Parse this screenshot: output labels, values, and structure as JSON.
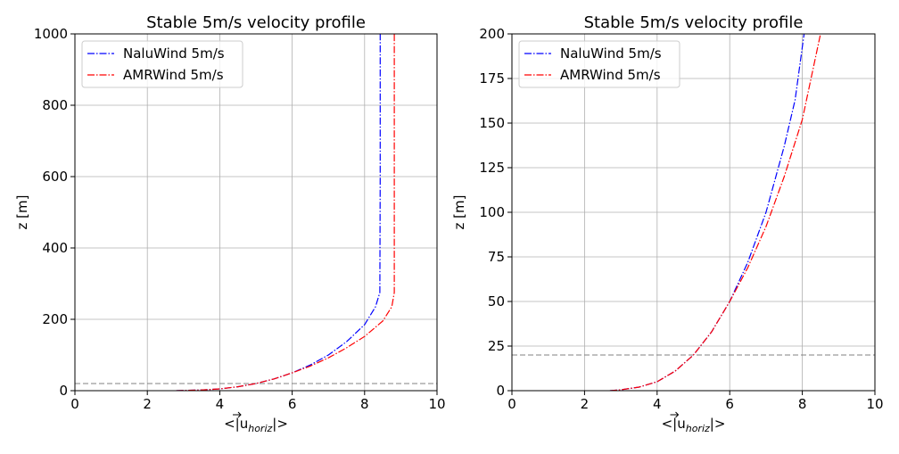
{
  "chart_data": [
    {
      "type": "line",
      "title": "Stable 5m/s velocity profile",
      "xlabel": "<|ū_horiz|>",
      "xlabel_main": "<|u",
      "xlabel_sub": "horiz",
      "xlabel_end": "|>",
      "ylabel": "z [m]",
      "xlim": [
        0,
        10
      ],
      "ylim": [
        0,
        1000
      ],
      "xticks": [
        "0",
        "2",
        "4",
        "6",
        "8",
        "10"
      ],
      "yticks": [
        "0",
        "200",
        "400",
        "600",
        "800",
        "1000"
      ],
      "grid": true,
      "legend_position": "top-left",
      "hline": {
        "y": 20,
        "color": "#808080",
        "style": "dashed"
      },
      "series": [
        {
          "name": "NaluWind 5m/s",
          "color": "#0000ff",
          "x": [
            2.8,
            3.5,
            4.0,
            4.5,
            5.0,
            5.5,
            6.0,
            6.5,
            7.0,
            7.5,
            8.0,
            8.3,
            8.42,
            8.43,
            8.43
          ],
          "z": [
            0,
            2,
            5,
            11,
            20,
            33,
            50,
            72,
            100,
            137,
            185,
            235,
            275,
            600,
            1000
          ]
        },
        {
          "name": "AMRWind 5m/s",
          "color": "#ff0000",
          "x": [
            2.8,
            3.5,
            4.0,
            4.5,
            5.0,
            5.5,
            6.0,
            6.5,
            7.0,
            7.5,
            8.0,
            8.5,
            8.75,
            8.82,
            8.82
          ],
          "z": [
            0,
            2,
            5,
            11,
            20,
            33,
            50,
            69,
            92,
            120,
            152,
            195,
            235,
            275,
            1000
          ]
        }
      ]
    },
    {
      "type": "line",
      "title": "Stable 5m/s velocity profile",
      "xlabel": "<|ū_horiz|>",
      "xlabel_main": "<|u",
      "xlabel_sub": "horiz",
      "xlabel_end": "|>",
      "ylabel": "z [m]",
      "xlim": [
        0,
        10
      ],
      "ylim": [
        0,
        200
      ],
      "xticks": [
        "0",
        "2",
        "4",
        "6",
        "8",
        "10"
      ],
      "yticks": [
        "0",
        "25",
        "50",
        "75",
        "100",
        "125",
        "150",
        "175",
        "200"
      ],
      "grid": true,
      "legend_position": "top-left",
      "hline": {
        "y": 20,
        "color": "#808080",
        "style": "dashed"
      },
      "series": [
        {
          "name": "NaluWind 5m/s",
          "color": "#0000ff",
          "x": [
            2.7,
            3.0,
            3.5,
            4.0,
            4.5,
            5.0,
            5.5,
            6.0,
            6.5,
            7.0,
            7.5,
            7.8,
            8.05
          ],
          "z": [
            0,
            0.5,
            2,
            5,
            11,
            20,
            33,
            50,
            72,
            100,
            137,
            163,
            200
          ]
        },
        {
          "name": "AMRWind 5m/s",
          "color": "#ff0000",
          "x": [
            2.7,
            3.0,
            3.5,
            4.0,
            4.5,
            5.0,
            5.5,
            6.0,
            6.5,
            7.0,
            7.5,
            8.0,
            8.5
          ],
          "z": [
            0,
            0.5,
            2,
            5,
            11,
            20,
            33,
            50,
            69,
            92,
            120,
            152,
            200
          ]
        }
      ]
    }
  ]
}
